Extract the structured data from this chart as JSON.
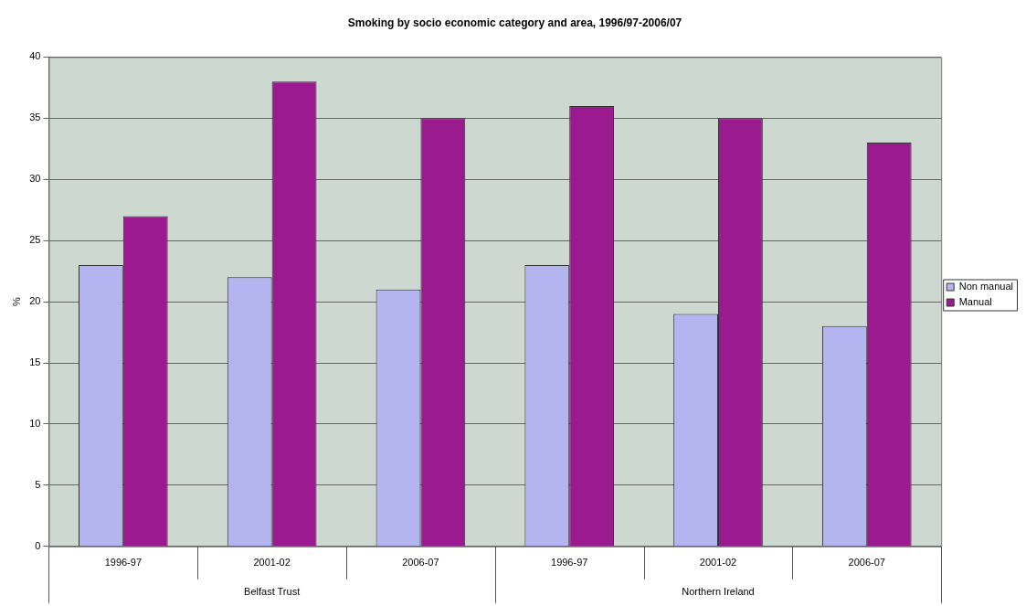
{
  "chart_data": {
    "type": "bar",
    "title": "Smoking by socio economic category and area, 1996/97-2006/07",
    "ylabel": "%",
    "categories": [
      "1996-97",
      "2001-02",
      "2006-07",
      "1996-97",
      "2001-02",
      "2006-07"
    ],
    "annotations": [
      "Belfast Trust",
      "Northern Ireland"
    ],
    "series": [
      {
        "name": "Non manual",
        "color": "#b4b4f0",
        "values": [
          23,
          22,
          21,
          23,
          19,
          18
        ]
      },
      {
        "name": "Manual",
        "color": "#9c1a90",
        "values": [
          27,
          38,
          35,
          36,
          35,
          33
        ]
      }
    ],
    "ylim": [
      0,
      40
    ],
    "yticks": [
      0,
      5,
      10,
      15,
      20,
      25,
      30,
      35,
      40
    ],
    "grid": "y",
    "legend": "right"
  }
}
